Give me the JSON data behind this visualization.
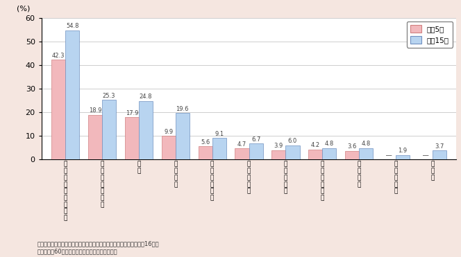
{
  "categories_ja": [
    "参加したものがある",
    "健康・スポーツ",
    "趣味",
    "地域行事",
    "生活環境改善",
    "教育・文化",
    "生産・就業",
    "高齢者の支援",
    "安全管理",
    "子育て支援",
    "その他"
  ],
  "values_h5": [
    42.3,
    18.9,
    17.9,
    9.9,
    5.6,
    4.7,
    3.9,
    4.2,
    3.6,
    0.0,
    0.0
  ],
  "values_h15": [
    54.8,
    25.3,
    24.8,
    19.6,
    9.1,
    6.7,
    6.0,
    4.8,
    4.8,
    1.9,
    3.7
  ],
  "null_h5": [
    false,
    false,
    false,
    false,
    false,
    false,
    false,
    false,
    false,
    true,
    true
  ],
  "labels_h5": [
    "42.3",
    "18.9",
    "17.9",
    "9.9",
    "5.6",
    "4.7",
    "3.9",
    "4.2",
    "3.6",
    "―",
    "―"
  ],
  "labels_h15": [
    "54.8",
    "25.3",
    "24.8",
    "19.6",
    "9.1",
    "6.7",
    "6.0",
    "4.8",
    "4.8",
    "1.9",
    "3.7"
  ],
  "color_h5": "#f2b8bc",
  "color_h15": "#b8d4f0",
  "edge_h5": "#d08080",
  "edge_h15": "#7090c0",
  "bg_color": "#f5e6e0",
  "ylim": [
    0,
    60
  ],
  "yticks": [
    0,
    10,
    20,
    30,
    40,
    50,
    60
  ],
  "legend_h5": "平成5年",
  "legend_h15": "平成15年",
  "ylabel": "(%)",
  "footer1": "資料：内閣府「高齢者の地域社会への参加に関する意識調査」（平成16年）",
  "footer2": "（注）全国60歳以上の男女を対象とした調査結果"
}
